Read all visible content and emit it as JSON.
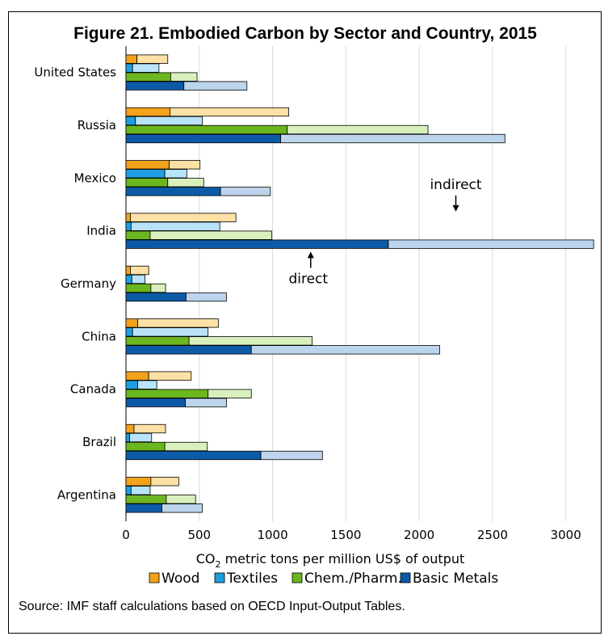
{
  "colors": {
    "wood": {
      "direct": "#f2a21b",
      "indirect": "#fde0a5"
    },
    "textiles": {
      "direct": "#1f9de0",
      "indirect": "#b9e3f8"
    },
    "chem": {
      "direct": "#6cb61f",
      "indirect": "#d9f0bd"
    },
    "metals": {
      "direct": "#0d5aa7",
      "indirect": "#bcd4ec"
    }
  },
  "chart_data": {
    "type": "bar",
    "orientation": "horizontal",
    "stacked": true,
    "title": "Figure 21. Embodied Carbon by Sector and Country, 2015",
    "xlabel_main": "CO",
    "xlabel_sub": "2",
    "xlabel_rest": " metric tons per million US$ of output",
    "xlim": [
      0,
      3200
    ],
    "xticks": [
      "0",
      "500",
      "1000",
      "1500",
      "2000",
      "2500",
      "3000"
    ],
    "grid": true,
    "legend_position": "bottom",
    "categories": [
      "United States",
      "Russia",
      "Mexico",
      "India",
      "Germany",
      "China",
      "Canada",
      "Brazil",
      "Argentina"
    ],
    "series": [
      {
        "name": "Wood",
        "key": "wood",
        "direct": [
          75,
          300,
          295,
          30,
          30,
          80,
          155,
          55,
          170
        ],
        "indirect": [
          210,
          810,
          210,
          720,
          125,
          550,
          290,
          215,
          190
        ]
      },
      {
        "name": "Textiles",
        "key": "textiles",
        "direct": [
          45,
          65,
          265,
          35,
          40,
          45,
          80,
          25,
          35
        ],
        "indirect": [
          180,
          455,
          150,
          605,
          90,
          515,
          130,
          150,
          130
        ]
      },
      {
        "name": "Chem./Pharm.",
        "key": "chem",
        "direct": [
          305,
          1100,
          285,
          165,
          170,
          430,
          560,
          265,
          275
        ],
        "indirect": [
          180,
          960,
          245,
          830,
          100,
          840,
          295,
          290,
          200
        ]
      },
      {
        "name": "Basic Metals",
        "key": "metals",
        "direct": [
          395,
          1055,
          645,
          1790,
          410,
          855,
          405,
          920,
          245
        ],
        "indirect": [
          430,
          1530,
          340,
          1400,
          275,
          1285,
          280,
          420,
          275
        ]
      }
    ],
    "annotations": [
      {
        "text": "indirect",
        "value": 2250,
        "category": "India",
        "direction": "down"
      },
      {
        "text": "direct",
        "value": 1260,
        "category": "India",
        "direction": "up"
      }
    ]
  },
  "source": "Source: IMF staff calculations based on OECD Input-Output Tables."
}
